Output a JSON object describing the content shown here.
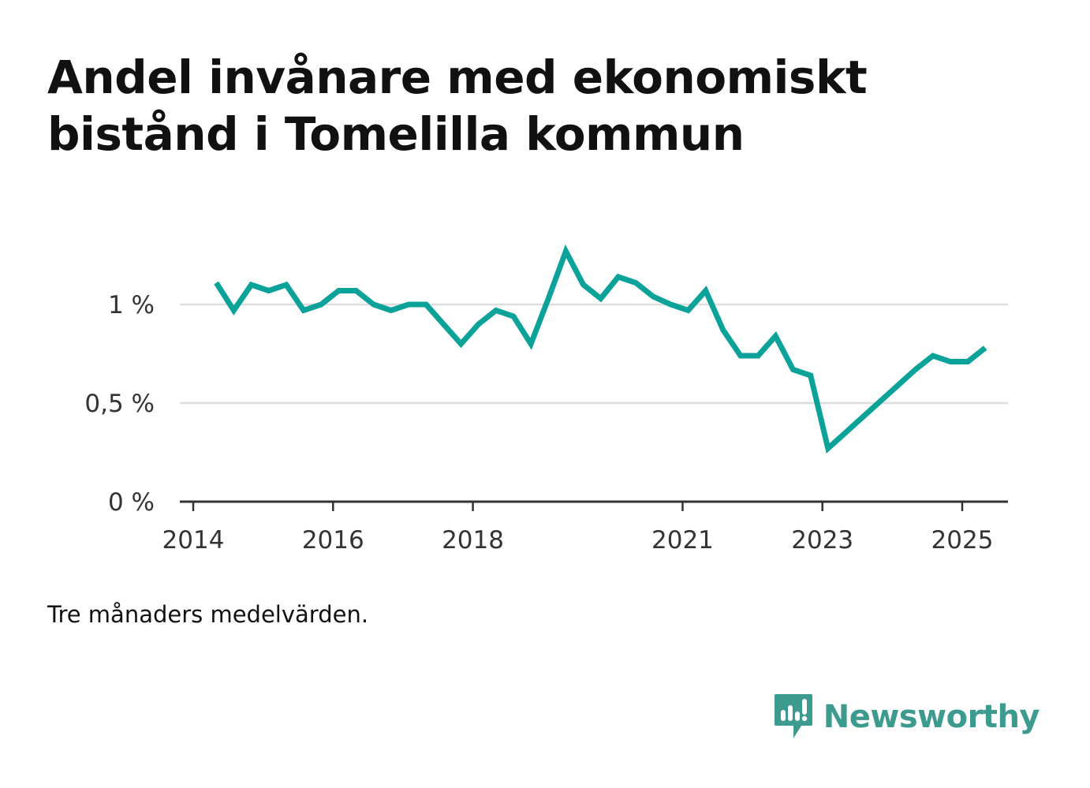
{
  "header": {
    "title": "Andel invånare med ekonomiskt bistånd i Tomelilla kommun"
  },
  "caption": "Tre månaders medelvärden.",
  "brand": {
    "name": "Newsworthy",
    "color": "#3c9a8f"
  },
  "colors": {
    "line": "#0ba29a",
    "grid": "#dddddd",
    "axis": "#333333"
  },
  "chart_data": {
    "type": "line",
    "title": "Andel invånare med ekonomiskt bistånd i Tomelilla kommun",
    "xlabel": "",
    "ylabel": "",
    "x_ticks": [
      2014,
      2016,
      2018,
      2021,
      2023,
      2025
    ],
    "x_tick_labels": [
      "2014",
      "2016",
      "2018",
      "2021",
      "2023",
      "2025"
    ],
    "y_ticks": [
      0,
      0.5,
      1
    ],
    "y_tick_labels": [
      "0 %",
      "0,5 %",
      "1 %"
    ],
    "xlim": [
      2013.97,
      2025.65
    ],
    "ylim": [
      0,
      1.3
    ],
    "grid": "horizontal",
    "legend": "none",
    "series": [
      {
        "x": [
          2014.33,
          2014.58,
          2014.83,
          2015.08,
          2015.33,
          2015.58,
          2015.83,
          2016.08,
          2016.33,
          2016.58,
          2016.83,
          2017.08,
          2017.33,
          2017.58,
          2017.83,
          2018.08,
          2018.33,
          2018.58,
          2018.83,
          2019.08,
          2019.33,
          2019.58,
          2019.83,
          2020.08,
          2020.33,
          2020.58,
          2020.83,
          2021.08,
          2021.33,
          2021.58,
          2021.83,
          2022.08,
          2022.33,
          2022.58,
          2022.83,
          2023.08,
          2023.33,
          2023.58,
          2023.83,
          2024.08,
          2024.33,
          2024.58,
          2024.83,
          2025.08,
          2025.33
        ],
        "values": [
          1.11,
          0.97,
          1.1,
          1.07,
          1.1,
          0.97,
          1.0,
          1.07,
          1.07,
          1.0,
          0.97,
          1.0,
          1.0,
          0.9,
          0.8,
          0.9,
          0.97,
          0.94,
          0.8,
          1.03,
          1.27,
          1.1,
          1.03,
          1.14,
          1.11,
          1.04,
          1.0,
          0.97,
          1.07,
          0.87,
          0.74,
          0.74,
          0.84,
          0.67,
          0.64,
          0.27,
          0.35,
          0.43,
          0.51,
          0.59,
          0.67,
          0.74,
          0.71,
          0.71,
          0.78
        ]
      }
    ]
  }
}
